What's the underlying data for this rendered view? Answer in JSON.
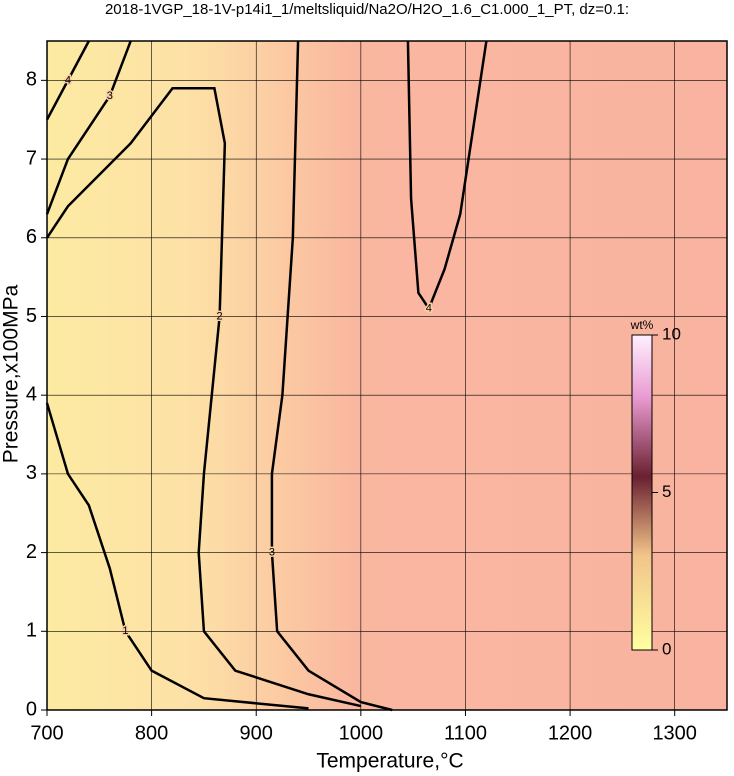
{
  "chart_data": {
    "type": "contour",
    "title": "2018-1VGP_18-1V-p14i1_1/meltsliquid/Na2O/H2O_1.6_C1.000_1_PT, dz=0.1:",
    "xlabel": "Temperature,°C",
    "ylabel": "Pressure,x100MPa",
    "xlim": [
      700,
      1350
    ],
    "ylim": [
      0,
      8.5
    ],
    "xticks": [
      700,
      800,
      900,
      1000,
      1100,
      1200,
      1300
    ],
    "yticks": [
      0,
      1,
      2,
      3,
      4,
      5,
      6,
      7,
      8
    ],
    "grid": true,
    "contours": [
      {
        "level": 1,
        "x": [
          700,
          720,
          740,
          760,
          775,
          800,
          850,
          950
        ],
        "y": [
          3.9,
          3.0,
          2.6,
          1.8,
          1.0,
          0.5,
          0.15,
          0.02
        ]
      },
      {
        "level": 2,
        "x": [
          700,
          720,
          780,
          820,
          860,
          870,
          865,
          850,
          845,
          850,
          880,
          950,
          1000
        ],
        "y": [
          6.0,
          6.4,
          7.2,
          7.9,
          7.9,
          7.2,
          5.0,
          3.0,
          2.0,
          1.0,
          0.5,
          0.2,
          0.05
        ]
      },
      {
        "level": 3,
        "x": [
          940,
          935,
          925,
          915,
          915,
          920,
          950,
          1000,
          1030
        ],
        "y": [
          8.5,
          6.0,
          4.0,
          3.0,
          2.0,
          1.0,
          0.5,
          0.1,
          0.0
        ]
      },
      {
        "level": 3,
        "x": [
          700,
          720,
          760,
          780
        ],
        "y": [
          6.3,
          7.0,
          7.8,
          8.5
        ]
      },
      {
        "level": 4,
        "x": [
          1045,
          1048,
          1055,
          1065,
          1080,
          1095,
          1120
        ],
        "y": [
          8.5,
          6.5,
          5.3,
          5.1,
          5.6,
          6.3,
          8.5
        ]
      },
      {
        "level": 4,
        "x": [
          700,
          720,
          740
        ],
        "y": [
          7.5,
          8.0,
          8.5
        ]
      }
    ],
    "colorbar": {
      "label": "wt%",
      "lim": [
        0,
        10
      ],
      "ticks": [
        0,
        5,
        10
      ]
    }
  }
}
